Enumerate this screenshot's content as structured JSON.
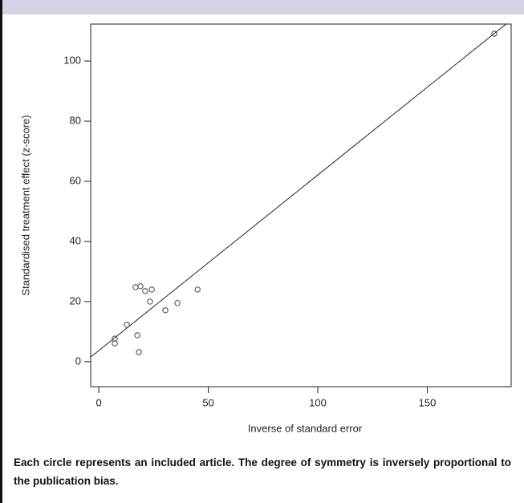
{
  "chart_data": {
    "type": "scatter",
    "x_label": "Inverse of standard error",
    "y_label": "Standardised treatment effect (z-score)",
    "caption": "Each circle represents an included article. The degree of symmetry is inversely proportional to the publication bias.",
    "x": [
      180.6,
      7.3,
      7.3,
      12.8,
      16.8,
      19.0,
      21.2,
      24.2,
      23.4,
      17.6,
      18.3,
      30.4,
      35.9,
      45.1
    ],
    "values": [
      109.1,
      7.7,
      6.1,
      12.3,
      24.8,
      25.1,
      23.5,
      24.0,
      20.0,
      8.8,
      3.2,
      17.1,
      19.5,
      24.0
    ],
    "color": "#444444",
    "fit": {
      "intercept": 3.7,
      "slope": 0.584
    },
    "xlim": [
      -3.7,
      188.3
    ],
    "ylim": [
      -8.3,
      112.3
    ],
    "xticks": [
      0,
      50,
      100,
      150
    ],
    "yticks": [
      0,
      20,
      40,
      60,
      80,
      100
    ]
  }
}
